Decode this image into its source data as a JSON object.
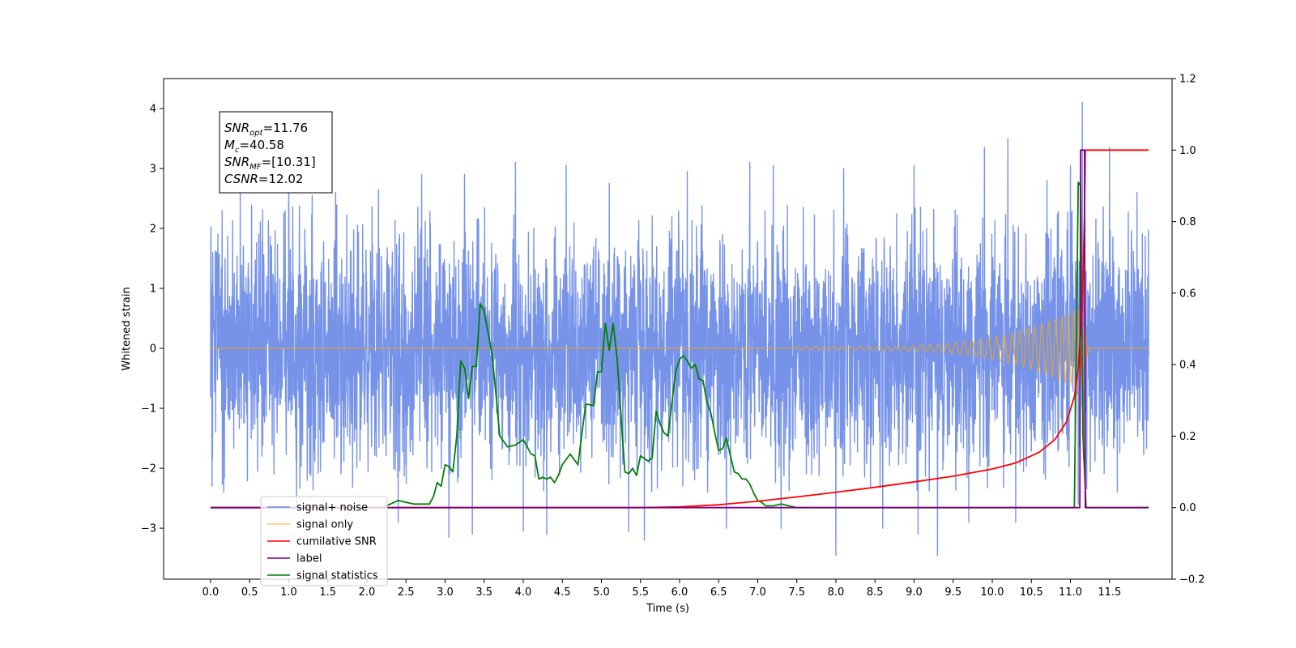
{
  "chart_data": {
    "type": "line",
    "title": "",
    "xlabel": "Time (s)",
    "ylabel": "Whitened strain",
    "y2label": "",
    "xlim": [
      -0.6,
      12.3
    ],
    "ylim": [
      -3.85,
      4.5
    ],
    "y2lim": [
      -0.2,
      1.2
    ],
    "x_ticks": [
      0.0,
      0.5,
      1.0,
      1.5,
      2.0,
      2.5,
      3.0,
      3.5,
      4.0,
      4.5,
      5.0,
      5.5,
      6.0,
      6.5,
      7.0,
      7.5,
      8.0,
      8.5,
      9.0,
      9.5,
      10.0,
      10.5,
      11.0,
      11.5
    ],
    "x_tick_labels": [
      "0.0",
      "0.5",
      "1.0",
      "1.5",
      "2.0",
      "2.5",
      "3.0",
      "3.5",
      "4.0",
      "4.5",
      "5.0",
      "5.5",
      "6.0",
      "6.5",
      "7.0",
      "7.5",
      "8.0",
      "8.5",
      "9.0",
      "9.5",
      "10.0",
      "10.5",
      "11.0",
      "11.5"
    ],
    "y_ticks": [
      -3,
      -2,
      -1,
      0,
      1,
      2,
      3,
      4
    ],
    "y_tick_labels": [
      "−3",
      "−2",
      "−1",
      "0",
      "1",
      "2",
      "3",
      "4"
    ],
    "y2_ticks": [
      -0.2,
      0.0,
      0.2,
      0.4,
      0.6,
      0.8,
      1.0,
      1.2
    ],
    "y2_tick_labels": [
      "−0.2",
      "0.0",
      "0.2",
      "0.4",
      "0.6",
      "0.8",
      "1.0",
      "1.2"
    ],
    "grid": false,
    "legend_position": "lower-left",
    "annotation": {
      "lines": [
        {
          "sym": "SNR",
          "sub": "opt",
          "value": "=11.76"
        },
        {
          "sym": "M",
          "sub": "c",
          "value": "=40.58"
        },
        {
          "sym": "SNR",
          "sub": "MF",
          "value": "=[10.31]"
        },
        {
          "sym": "CSNR",
          "sub": "",
          "value": "=12.02"
        }
      ]
    },
    "noise": {
      "x_range": [
        0.0,
        12.0
      ],
      "envelope_upper": 1.9,
      "envelope_lower": -1.9,
      "peaks": [
        {
          "x": 0.15,
          "y": 2.3
        },
        {
          "x": 0.38,
          "y": 2.6
        },
        {
          "x": 1.0,
          "y": 2.65
        },
        {
          "x": 1.3,
          "y": 2.55
        },
        {
          "x": 1.6,
          "y": 2.6
        },
        {
          "x": 2.15,
          "y": 2.65
        },
        {
          "x": 2.7,
          "y": 2.9
        },
        {
          "x": 3.25,
          "y": 2.9
        },
        {
          "x": 3.9,
          "y": 3.1
        },
        {
          "x": 4.55,
          "y": 3.05
        },
        {
          "x": 5.1,
          "y": 2.75
        },
        {
          "x": 6.1,
          "y": 2.95
        },
        {
          "x": 6.9,
          "y": 3.1
        },
        {
          "x": 7.2,
          "y": 3.05
        },
        {
          "x": 8.1,
          "y": 3.0
        },
        {
          "x": 9.0,
          "y": 3.05
        },
        {
          "x": 9.9,
          "y": 3.35
        },
        {
          "x": 10.2,
          "y": 3.5
        },
        {
          "x": 10.7,
          "y": 2.8
        },
        {
          "x": 11.0,
          "y": 3.05
        },
        {
          "x": 11.15,
          "y": 4.1
        },
        {
          "x": 11.5,
          "y": 3.35
        },
        {
          "x": 11.85,
          "y": 2.6
        }
      ],
      "troughs": [
        {
          "x": 0.02,
          "y": -2.3
        },
        {
          "x": 1.1,
          "y": -2.6
        },
        {
          "x": 2.4,
          "y": -2.9
        },
        {
          "x": 3.05,
          "y": -3.15
        },
        {
          "x": 3.35,
          "y": -3.1
        },
        {
          "x": 4.0,
          "y": -3.05
        },
        {
          "x": 4.3,
          "y": -3.1
        },
        {
          "x": 5.35,
          "y": -3.05
        },
        {
          "x": 5.55,
          "y": -3.2
        },
        {
          "x": 6.6,
          "y": -3.0
        },
        {
          "x": 7.3,
          "y": -3.0
        },
        {
          "x": 8.0,
          "y": -3.45
        },
        {
          "x": 8.6,
          "y": -3.0
        },
        {
          "x": 9.05,
          "y": -3.1
        },
        {
          "x": 9.3,
          "y": -3.45
        },
        {
          "x": 9.7,
          "y": -2.9
        },
        {
          "x": 10.3,
          "y": -2.9
        },
        {
          "x": 11.1,
          "y": -2.6
        },
        {
          "x": 11.6,
          "y": -2.4
        }
      ]
    },
    "chirp": {
      "x_range": [
        0.0,
        12.0
      ],
      "visible_from": 7.5,
      "peak_time": 11.15,
      "amplitude_at_8": 0.03,
      "amplitude_at_peak": 0.7
    },
    "series": [
      {
        "name": "signal+ noise",
        "axis": "left",
        "color": "#4169e1",
        "style": "noise"
      },
      {
        "name": "signal only",
        "axis": "left",
        "color": "#ffa500",
        "style": "chirp"
      },
      {
        "name": "cumilative SNR",
        "axis": "right",
        "color": "#ff0000",
        "x": [
          0.0,
          4.5,
          5.5,
          6.0,
          6.5,
          7.0,
          7.5,
          8.0,
          8.5,
          9.0,
          9.5,
          10.0,
          10.3,
          10.6,
          10.8,
          10.95,
          11.05,
          11.1,
          11.15,
          11.18,
          11.19,
          12.0
        ],
        "y": [
          0.0,
          0.0,
          0.0,
          0.002,
          0.008,
          0.018,
          0.03,
          0.043,
          0.057,
          0.072,
          0.088,
          0.108,
          0.125,
          0.155,
          0.19,
          0.24,
          0.31,
          0.39,
          0.55,
          0.82,
          1.0,
          1.0
        ]
      },
      {
        "name": "label",
        "axis": "right",
        "color": "#800080",
        "x": [
          0.0,
          11.12,
          11.13,
          11.18,
          11.19,
          12.0
        ],
        "y": [
          0.0,
          0.0,
          1.0,
          1.0,
          0.0,
          0.0
        ]
      },
      {
        "name": "signal statistics",
        "axis": "right",
        "color": "#008000",
        "x": [
          0.0,
          2.2,
          2.3,
          2.4,
          2.5,
          2.6,
          2.7,
          2.8,
          2.85,
          2.9,
          2.95,
          3.0,
          3.05,
          3.1,
          3.15,
          3.2,
          3.25,
          3.3,
          3.35,
          3.4,
          3.45,
          3.5,
          3.55,
          3.6,
          3.65,
          3.7,
          3.8,
          3.9,
          4.0,
          4.1,
          4.15,
          4.2,
          4.25,
          4.3,
          4.35,
          4.4,
          4.45,
          4.5,
          4.6,
          4.7,
          4.8,
          4.9,
          4.95,
          5.0,
          5.05,
          5.1,
          5.15,
          5.2,
          5.25,
          5.3,
          5.35,
          5.4,
          5.45,
          5.5,
          5.6,
          5.65,
          5.7,
          5.75,
          5.8,
          5.85,
          5.9,
          5.95,
          6.0,
          6.05,
          6.1,
          6.15,
          6.2,
          6.25,
          6.3,
          6.35,
          6.4,
          6.45,
          6.5,
          6.55,
          6.6,
          6.65,
          6.7,
          6.75,
          6.8,
          6.85,
          6.9,
          6.95,
          7.0,
          7.05,
          7.1,
          7.2,
          7.3,
          7.4,
          7.5,
          7.6,
          7.8,
          7.9,
          8.0,
          11.05,
          11.1,
          11.13,
          11.16,
          11.2,
          12.0
        ],
        "y": [
          0.0,
          0.0,
          0.01,
          0.02,
          0.015,
          0.01,
          0.01,
          0.01,
          0.03,
          0.07,
          0.06,
          0.12,
          0.115,
          0.1,
          0.2,
          0.41,
          0.39,
          0.305,
          0.395,
          0.395,
          0.57,
          0.55,
          0.49,
          0.43,
          0.32,
          0.2,
          0.17,
          0.175,
          0.19,
          0.15,
          0.145,
          0.08,
          0.085,
          0.08,
          0.085,
          0.07,
          0.09,
          0.12,
          0.15,
          0.12,
          0.29,
          0.285,
          0.38,
          0.38,
          0.515,
          0.44,
          0.515,
          0.42,
          0.26,
          0.1,
          0.095,
          0.11,
          0.09,
          0.145,
          0.13,
          0.14,
          0.27,
          0.235,
          0.21,
          0.2,
          0.29,
          0.38,
          0.415,
          0.425,
          0.41,
          0.39,
          0.4,
          0.36,
          0.355,
          0.295,
          0.265,
          0.21,
          0.16,
          0.165,
          0.195,
          0.145,
          0.1,
          0.095,
          0.08,
          0.08,
          0.065,
          0.04,
          0.02,
          0.015,
          0.005,
          0.005,
          0.01,
          0.005,
          0.0,
          0.0,
          0.0,
          0.0,
          0.0,
          0.0,
          0.91,
          0.9,
          0.2,
          0.0,
          0.0
        ]
      }
    ]
  }
}
